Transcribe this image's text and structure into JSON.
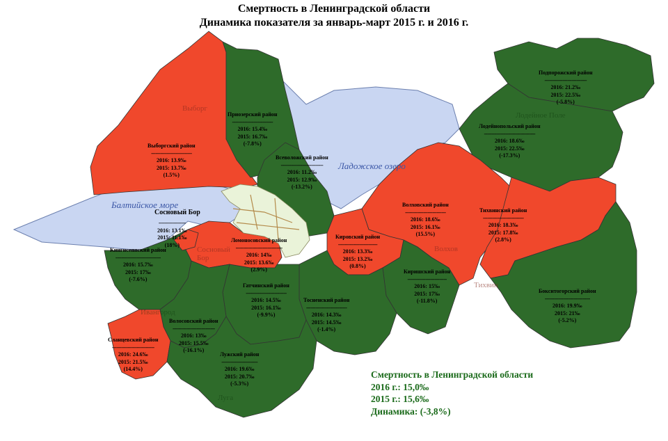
{
  "title": {
    "line1": "Смертность в Ленинградской области",
    "line2": "Динамика показателя за январь-март 2015 г. и 2016 г."
  },
  "colors": {
    "increase": "#f0482c",
    "decrease": "#2e6b2a",
    "water": "#c9d6f2",
    "city": "#eaf3d9",
    "summary_text": "#1a6a1a"
  },
  "water_labels": {
    "baltic": "Балтийское море",
    "ladoga": "Ладожское озеро"
  },
  "cities": {
    "sosnovy_bor": "Сосновый Бор"
  },
  "place_names": {
    "vyborg": "Выборг",
    "lodeynoe": "Лодейное Поле",
    "volkhov": "Волхов",
    "tikhvin": "Тихвин",
    "ivangorod": "Ивангород",
    "luga": "Луга",
    "sosnovy_bor_map": "Сосновый Бор"
  },
  "districts": [
    {
      "name": "Выборгский район",
      "dash": "---------------------------",
      "y2016": "2016: 13.9‰",
      "y2015": "2015: 13.7‰",
      "change": "(1.5%)",
      "status": "increase"
    },
    {
      "name": "Приозерский район",
      "dash": "---------------------------",
      "y2016": "2016: 15.4‰",
      "y2015": "2015: 16.7‰",
      "change": "(-7.8%)",
      "status": "decrease"
    },
    {
      "name": "Всеволожский район",
      "dash": "----------------------------",
      "y2016": "2016: 11.2‰",
      "y2015": "2015: 12.9‰",
      "change": "(-13.2%)",
      "status": "decrease"
    },
    {
      "name": "Подпорожский район",
      "dash": "----------------------------",
      "y2016": "2016: 21.2‰",
      "y2015": "2015: 22.5‰",
      "change": "(-5.8%)",
      "status": "decrease"
    },
    {
      "name": "Лодейнопольский район",
      "dash": "----------------------------------",
      "y2016": "2016: 18.6‰",
      "y2015": "2015: 22.5‰",
      "change": "(-17.3%)",
      "status": "decrease"
    },
    {
      "name": "",
      "dash": "",
      "y2016": "2016: 13.1‰",
      "y2015": "2015: 11.1‰",
      "change": "(18%)",
      "status": "increase"
    },
    {
      "name": "Волховский район",
      "dash": "---------------------------",
      "y2016": "2016: 18.6‰",
      "y2015": "2015: 16.1‰",
      "change": "(15.5%)",
      "status": "increase"
    },
    {
      "name": "Тихвинский район",
      "dash": "---------------------------",
      "y2016": "2016: 18.3‰",
      "y2015": "2015: 17.8‰",
      "change": "(2.8%)",
      "status": "increase"
    },
    {
      "name": "Ломоносовский район",
      "dash": "-------------------------------",
      "y2016": "2016: 14‰",
      "y2015": "2015: 13.6‰",
      "change": "(2.9%)",
      "status": "increase"
    },
    {
      "name": "Кировский район",
      "dash": "--------------------------",
      "y2016": "2016: 13.3‰",
      "y2015": "2015: 13.2‰",
      "change": "(0.8%)",
      "status": "increase"
    },
    {
      "name": "Кингисеппский район",
      "dash": "------------------------------",
      "y2016": "2016: 15.7‰",
      "y2015": "2015: 17‰",
      "change": "(-7.6%)",
      "status": "decrease"
    },
    {
      "name": "Киришский район",
      "dash": "--------------------------",
      "y2016": "2016: 15‰",
      "y2015": "2015: 17‰",
      "change": "(-11.8%)",
      "status": "decrease"
    },
    {
      "name": "Гатчинский район",
      "dash": "---------------------------",
      "y2016": "2016: 14.5‰",
      "y2015": "2015: 16.1‰",
      "change": "(-9.9%)",
      "status": "decrease"
    },
    {
      "name": "Тосненский район",
      "dash": "---------------------------",
      "y2016": "2016: 14.3‰",
      "y2015": "2015: 14.5‰",
      "change": "(-1.4%)",
      "status": "decrease"
    },
    {
      "name": "Бокситогорский район",
      "dash": "------------------------------",
      "y2016": "2016: 19.9‰",
      "y2015": "2015: 21‰",
      "change": "(-5.2%)",
      "status": "decrease"
    },
    {
      "name": "Волосовский район",
      "dash": "----------------------------",
      "y2016": "2016: 13‰",
      "y2015": "2015: 15.5‰",
      "change": "(-16.1%)",
      "status": "decrease"
    },
    {
      "name": "Сланцевский район",
      "dash": "----------------------------",
      "y2016": "2016: 24.6‰",
      "y2015": "2015: 21.5‰",
      "change": "(14.4%)",
      "status": "increase"
    },
    {
      "name": "Лужский район",
      "dash": "------------------------",
      "y2016": "2016: 19.6‰",
      "y2015": "2015: 20.7‰",
      "change": "(-5.3%)",
      "status": "decrease"
    }
  ],
  "summary": {
    "title": "Смертность в Ленинградской области",
    "y2016": "2016 г.: 15,0‰",
    "y2015": "2015 г.: 15,6‰",
    "change": "Динамика: (-3,8%)"
  }
}
